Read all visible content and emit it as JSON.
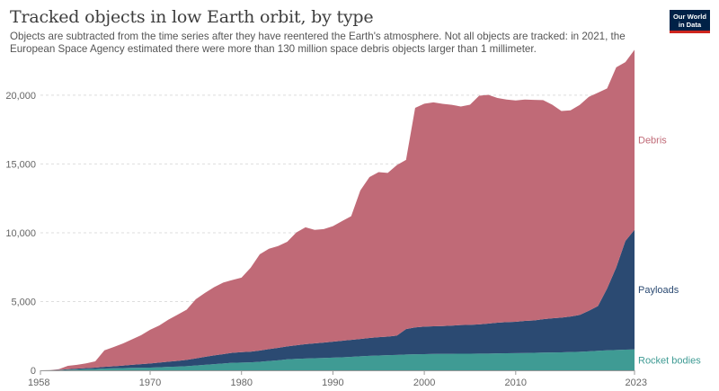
{
  "header": {
    "title": "Tracked objects in low Earth orbit, by type",
    "subtitle": "Objects are subtracted from the time series after they have reentered the Earth's atmosphere. Not all objects are tracked: in 2021, the European Space Agency estimated there were more than 130 million space debris objects larger than 1 millimeter."
  },
  "logo": {
    "line1": "Our World",
    "line2": "in Data",
    "bg_color": "#002147",
    "accent_color": "#ce261e"
  },
  "chart_data": {
    "type": "area",
    "stacked": true,
    "title": "Tracked objects in low Earth orbit, by type",
    "xlabel": "",
    "ylabel": "",
    "x": [
      1958,
      1959,
      1960,
      1961,
      1962,
      1963,
      1964,
      1965,
      1966,
      1967,
      1968,
      1969,
      1970,
      1971,
      1972,
      1973,
      1974,
      1975,
      1976,
      1977,
      1978,
      1979,
      1980,
      1981,
      1982,
      1983,
      1984,
      1985,
      1986,
      1987,
      1988,
      1989,
      1990,
      1991,
      1992,
      1993,
      1994,
      1995,
      1996,
      1997,
      1998,
      1999,
      2000,
      2001,
      2002,
      2003,
      2004,
      2005,
      2006,
      2007,
      2008,
      2009,
      2010,
      2011,
      2012,
      2013,
      2014,
      2015,
      2016,
      2017,
      2018,
      2019,
      2020,
      2021,
      2022,
      2023
    ],
    "xlim": [
      1958,
      2023
    ],
    "ylim": [
      0,
      23000
    ],
    "x_ticks": [
      "1958",
      "1970",
      "1980",
      "1990",
      "2000",
      "2010",
      "2023"
    ],
    "x_tick_values": [
      1958,
      1970,
      1980,
      1990,
      2000,
      2010,
      2023
    ],
    "y_ticks": [
      "0",
      "5,000",
      "10,000",
      "15,000",
      "20,000"
    ],
    "y_tick_values": [
      0,
      5000,
      10000,
      15000,
      20000
    ],
    "grid": "horizontal dashed",
    "legend": "inline labels at right end",
    "series": [
      {
        "name": "Rocket bodies",
        "color": "#3f9b94",
        "values": [
          0,
          5,
          20,
          40,
          60,
          80,
          100,
          130,
          150,
          160,
          180,
          190,
          200,
          220,
          250,
          270,
          300,
          350,
          400,
          450,
          500,
          550,
          560,
          580,
          620,
          680,
          730,
          800,
          830,
          860,
          880,
          900,
          920,
          950,
          980,
          1020,
          1050,
          1080,
          1100,
          1120,
          1150,
          1170,
          1180,
          1190,
          1200,
          1200,
          1210,
          1210,
          1220,
          1220,
          1230,
          1240,
          1250,
          1260,
          1270,
          1290,
          1300,
          1310,
          1330,
          1350,
          1380,
          1420,
          1450,
          1480,
          1500,
          1520
        ]
      },
      {
        "name": "Payloads",
        "color": "#2b4a72",
        "values": [
          0,
          5,
          15,
          40,
          60,
          80,
          100,
          120,
          140,
          180,
          220,
          260,
          300,
          340,
          380,
          420,
          460,
          520,
          580,
          640,
          680,
          720,
          760,
          780,
          820,
          860,
          900,
          940,
          990,
          1040,
          1080,
          1120,
          1160,
          1200,
          1230,
          1260,
          1300,
          1330,
          1350,
          1400,
          1850,
          1950,
          2000,
          2010,
          2020,
          2050,
          2080,
          2100,
          2120,
          2180,
          2230,
          2260,
          2280,
          2330,
          2360,
          2430,
          2480,
          2520,
          2580,
          2680,
          2950,
          3250,
          4500,
          6000,
          7900,
          8700
        ]
      },
      {
        "name": "Debris",
        "color": "#c06a77",
        "values": [
          0,
          10,
          50,
          250,
          280,
          350,
          450,
          1200,
          1400,
          1600,
          1850,
          2100,
          2450,
          2700,
          3050,
          3350,
          3650,
          4300,
          4650,
          4950,
          5200,
          5300,
          5420,
          6100,
          7000,
          7300,
          7400,
          7600,
          8200,
          8500,
          8250,
          8250,
          8400,
          8700,
          9000,
          10800,
          11700,
          12000,
          11900,
          12400,
          12300,
          15960,
          16200,
          16280,
          16150,
          16050,
          15890,
          16000,
          16620,
          16630,
          16340,
          16180,
          16090,
          16090,
          16030,
          15920,
          15530,
          15020,
          14990,
          15260,
          15550,
          15510,
          14540,
          14550,
          13000,
          13080
        ]
      }
    ]
  }
}
